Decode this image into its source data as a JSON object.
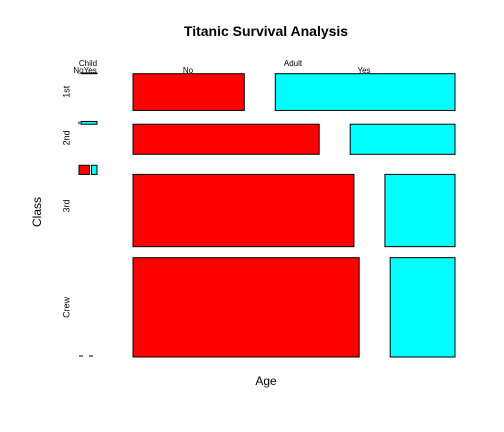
{
  "chart_data": {
    "type": "mosaic",
    "title": "Titanic Survival Analysis",
    "xlabel": "Age",
    "ylabel": "Class",
    "age_levels": [
      "Child",
      "Adult"
    ],
    "class_levels": [
      "1st",
      "2nd",
      "3rd",
      "Crew"
    ],
    "survived_levels": [
      "No",
      "Yes"
    ],
    "survived_header": {
      "child": "NoYes",
      "adult_no": "No",
      "adult_yes": "Yes"
    },
    "colors": {
      "No": "#ff0000",
      "Yes": "#00ffff"
    },
    "counts": {
      "Child": {
        "1st": {
          "No": 0,
          "Yes": 6
        },
        "2nd": {
          "No": 0,
          "Yes": 24
        },
        "3rd": {
          "No": 52,
          "Yes": 27
        },
        "Crew": {
          "No": 0,
          "Yes": 0
        }
      },
      "Adult": {
        "1st": {
          "No": 122,
          "Yes": 197
        },
        "2nd": {
          "No": 167,
          "Yes": 94
        },
        "3rd": {
          "No": 476,
          "Yes": 151
        },
        "Crew": {
          "No": 670,
          "Yes": 192
        }
      }
    }
  }
}
